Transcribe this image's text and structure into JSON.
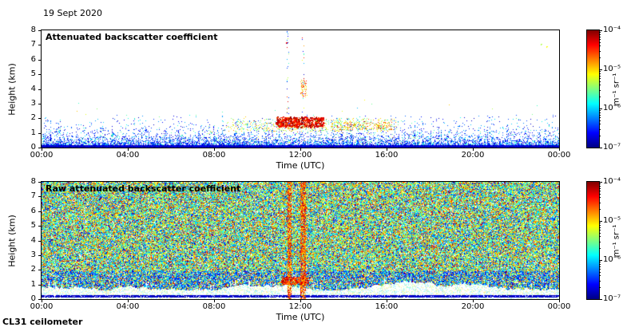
{
  "page": {
    "date_label": "19 Sept 2020",
    "instrument_label": "CL31 ceilometer",
    "background": "#ffffff"
  },
  "colormap": {
    "name": "jet",
    "stops": [
      [
        0.0,
        "#000083"
      ],
      [
        0.125,
        "#0000ff"
      ],
      [
        0.375,
        "#00ffff"
      ],
      [
        0.625,
        "#ffff00"
      ],
      [
        0.875,
        "#ff0000"
      ],
      [
        1.0,
        "#800000"
      ]
    ]
  },
  "chart_data": [
    {
      "type": "heatmap",
      "title": "Attenuated backscatter coefficient",
      "xlabel": "Time (UTC)",
      "ylabel": "Height (km)",
      "x_tick_labels": [
        "00:00",
        "04:00",
        "08:00",
        "12:00",
        "16:00",
        "20:00",
        "00:00"
      ],
      "x_range_hours": [
        0,
        24
      ],
      "y_tick_values": [
        "0",
        "1",
        "2",
        "3",
        "4",
        "5",
        "6",
        "7",
        "8"
      ],
      "y_range_km": [
        0,
        8
      ],
      "colorbar": {
        "tick_labels": [
          "10⁻⁴",
          "10⁻⁵",
          "10⁻⁶",
          "10⁻⁷"
        ],
        "unit": "m⁻¹ sr⁻¹",
        "log10_range": [
          -7,
          -4
        ]
      },
      "render": {
        "seed": 20200919,
        "boundary_layer": {
          "solid_top_km": 0.15,
          "decay_km": 0.38,
          "max_km": 2.2
        },
        "sparse_dots": {
          "n": 260,
          "h_max": 1.7
        },
        "aerosol_outer": {
          "t_start": 8.6,
          "t_end": 16.5,
          "h_base": 1.05,
          "h_top": 1.95,
          "n": 750
        },
        "aerosol_core": {
          "t_start": 10.9,
          "t_end": 13.1,
          "h_base": 1.35,
          "h_top": 2.05,
          "n": 620
        },
        "mid_cluster": {
          "t_start": 13.6,
          "t_end": 16.3,
          "h_base": 1.15,
          "h_top": 1.7,
          "n": 220
        },
        "streak_times": [
          11.45,
          12.15
        ],
        "high_cluster": {
          "t_start": 12.02,
          "t_end": 12.35,
          "h_base": 3.4,
          "h_top": 4.6,
          "n": 70
        },
        "spot_dots": [
          {
            "t": 11.38,
            "h": 7.15,
            "v": 0.85
          },
          {
            "t": 23.45,
            "h": 6.9,
            "v": 0.62
          },
          {
            "t": 23.2,
            "h": 7.05,
            "v": 0.55
          }
        ]
      }
    },
    {
      "type": "heatmap",
      "title": "Raw attenuated backscatter coefficient",
      "xlabel": "Time (UTC)",
      "ylabel": "Height (km)",
      "x_tick_labels": [
        "00:00",
        "04:00",
        "08:00",
        "12:00",
        "16:00",
        "20:00",
        "00:00"
      ],
      "x_range_hours": [
        0,
        24
      ],
      "y_tick_values": [
        "0",
        "1",
        "2",
        "3",
        "4",
        "5",
        "6",
        "7",
        "8"
      ],
      "y_range_km": [
        0,
        8
      ],
      "colorbar": {
        "tick_labels": [
          "10⁻⁴",
          "10⁻⁵",
          "10⁻⁶",
          "10⁻⁷"
        ],
        "unit": "m⁻¹ sr⁻¹",
        "log10_range": [
          -7,
          -4
        ]
      },
      "render": {
        "seed": 31415,
        "noise_fill": 0.9,
        "white_band": {
          "mean_top_km": 0.82,
          "dark_line_km": [
            0.06,
            0.26
          ]
        },
        "blue_bias_below_km": 1.9,
        "streak_intervals": [
          [
            11.45,
            11.62
          ],
          [
            12.04,
            12.28
          ]
        ],
        "low_blob": {
          "t_start": 11.15,
          "t_end": 12.4,
          "h_base": 0.95,
          "h_top": 1.45,
          "n": 380
        }
      }
    }
  ]
}
